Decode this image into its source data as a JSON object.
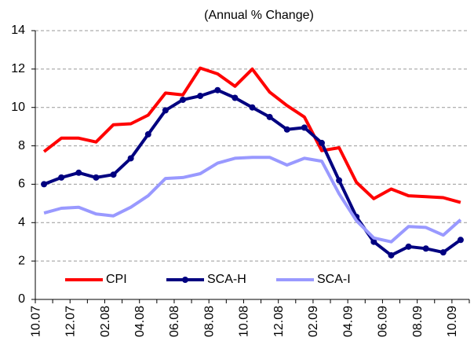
{
  "chart_data": {
    "type": "line",
    "title": "(Annual % Change)",
    "categories": [
      "10.07",
      null,
      "12.07",
      null,
      "02.08",
      null,
      "04.08",
      null,
      "06.08",
      null,
      "08.08",
      null,
      "10.08",
      null,
      "12.08",
      null,
      "02.09",
      null,
      "04.09",
      null,
      "06.09",
      null,
      "08.09",
      null,
      "10.09"
    ],
    "series": [
      {
        "name": "CPI",
        "color": "#ff0000",
        "values": [
          7.7,
          8.4,
          8.4,
          8.2,
          9.1,
          9.15,
          9.6,
          10.75,
          10.65,
          12.05,
          11.75,
          11.1,
          12.0,
          10.8,
          10.1,
          9.5,
          7.75,
          7.9,
          6.1,
          5.25,
          5.75,
          5.4,
          5.35,
          5.3,
          5.05
        ]
      },
      {
        "name": "SCA-H",
        "color": "#000080",
        "marker": "circle",
        "values": [
          6.0,
          6.35,
          6.6,
          6.35,
          6.5,
          7.35,
          8.6,
          9.85,
          10.4,
          10.6,
          10.9,
          10.5,
          10.0,
          9.5,
          8.85,
          8.95,
          8.15,
          6.2,
          4.3,
          3.0,
          2.3,
          2.75,
          2.65,
          2.45,
          3.1
        ]
      },
      {
        "name": "SCA-I",
        "color": "#9999ff",
        "values": [
          4.5,
          4.75,
          4.8,
          4.45,
          4.35,
          4.8,
          5.4,
          6.3,
          6.35,
          6.55,
          7.1,
          7.35,
          7.4,
          7.4,
          7.0,
          7.35,
          7.2,
          5.5,
          4.1,
          3.2,
          3.0,
          3.8,
          3.75,
          3.35,
          4.15
        ]
      }
    ],
    "ylim": [
      0,
      14
    ],
    "yticks": [
      0,
      2,
      4,
      6,
      8,
      10,
      12,
      14
    ],
    "grid": true,
    "legend": "bottom"
  }
}
